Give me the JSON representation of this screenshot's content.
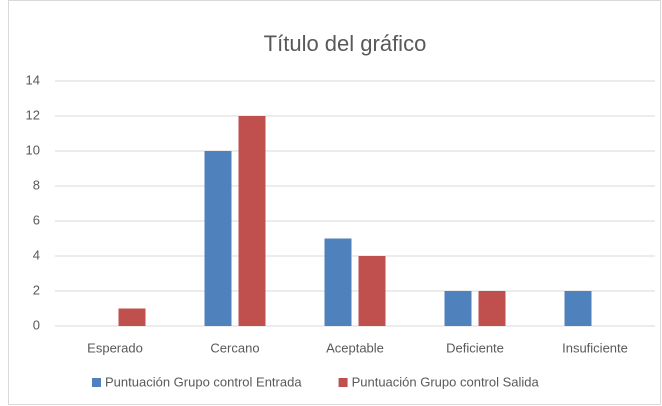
{
  "chart_data": {
    "type": "bar",
    "title": "Título del gráfico",
    "categories": [
      "Esperado",
      "Cercano",
      "Aceptable",
      "Deficiente",
      "Insuficiente"
    ],
    "series": [
      {
        "name": "Puntuación Grupo control Entrada",
        "color": "#4f81bd",
        "values": [
          0,
          10,
          5,
          2,
          2
        ]
      },
      {
        "name": "Puntuación Grupo control Salida",
        "color": "#c0504d",
        "values": [
          1,
          12,
          4,
          2,
          0
        ]
      }
    ],
    "ylim": [
      0,
      14
    ],
    "yticks": [
      0,
      2,
      4,
      6,
      8,
      10,
      12,
      14
    ],
    "grid": true,
    "legend": "bottom"
  }
}
